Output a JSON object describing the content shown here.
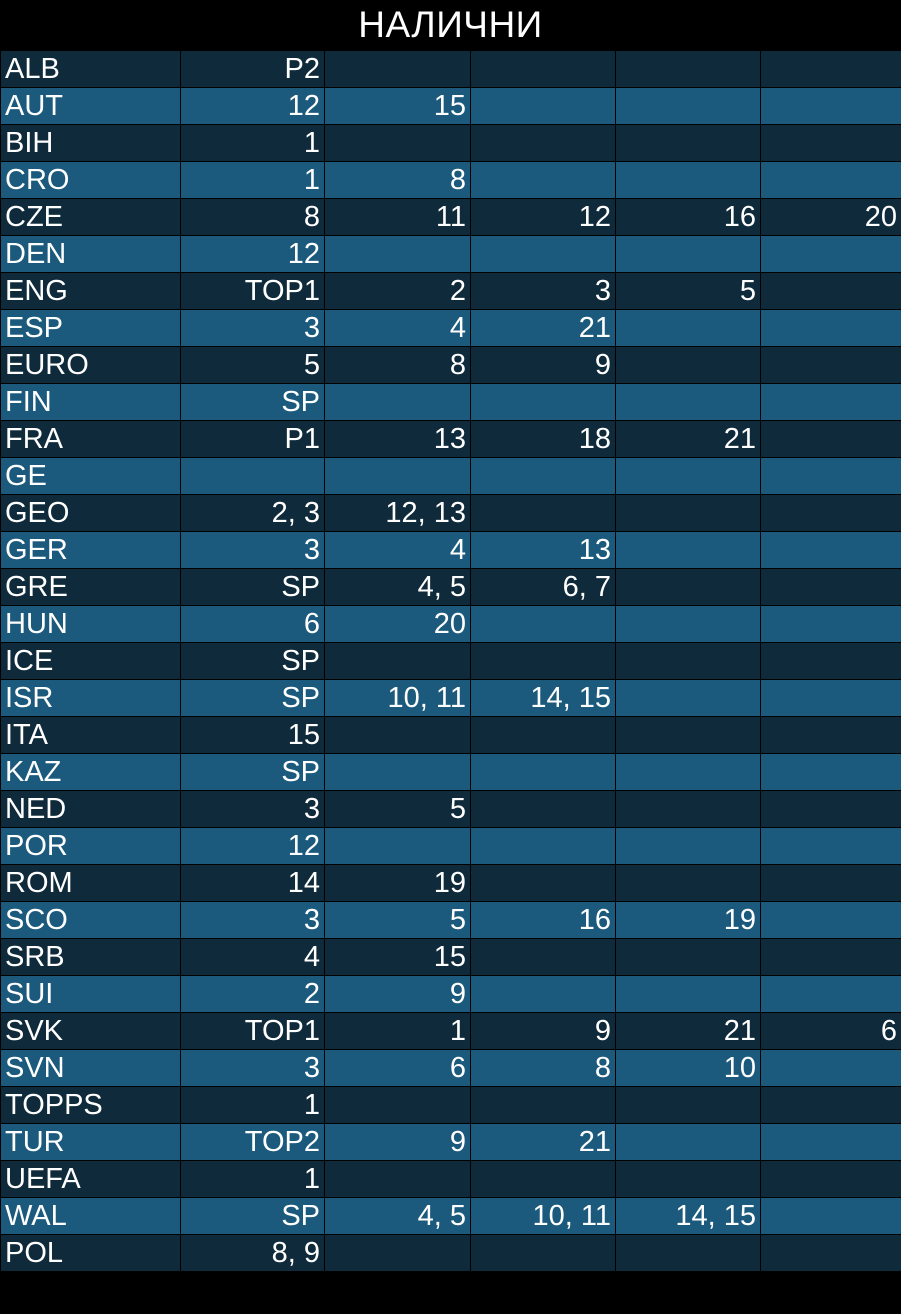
{
  "title": "НАЛИЧНИ",
  "colors": {
    "background": "#000000",
    "row_dark": "#0f2a3a",
    "row_light": "#1b5a7d",
    "text": "#ffffff"
  },
  "rows": [
    {
      "code": "ALB",
      "values": [
        "P2",
        "",
        "",
        "",
        ""
      ]
    },
    {
      "code": "AUT",
      "values": [
        "12",
        "15",
        "",
        "",
        ""
      ]
    },
    {
      "code": "BIH",
      "values": [
        "1",
        "",
        "",
        "",
        ""
      ]
    },
    {
      "code": "CRO",
      "values": [
        "1",
        "8",
        "",
        "",
        ""
      ]
    },
    {
      "code": "CZE",
      "values": [
        "8",
        "11",
        "12",
        "16",
        "20"
      ]
    },
    {
      "code": "DEN",
      "values": [
        "12",
        "",
        "",
        "",
        ""
      ]
    },
    {
      "code": "ENG",
      "values": [
        "TOP1",
        "2",
        "3",
        "5",
        ""
      ]
    },
    {
      "code": "ESP",
      "values": [
        "3",
        "4",
        "21",
        "",
        ""
      ]
    },
    {
      "code": "EURO",
      "values": [
        "5",
        "8",
        "9",
        "",
        ""
      ]
    },
    {
      "code": "FIN",
      "values": [
        "SP",
        "",
        "",
        "",
        ""
      ]
    },
    {
      "code": "FRA",
      "values": [
        "P1",
        "13",
        "18",
        "21",
        ""
      ]
    },
    {
      "code": "GE",
      "values": [
        "",
        "",
        "",
        "",
        ""
      ]
    },
    {
      "code": "GEO",
      "values": [
        "2, 3",
        "12, 13",
        "",
        "",
        ""
      ]
    },
    {
      "code": "GER",
      "values": [
        "3",
        "4",
        "13",
        "",
        ""
      ]
    },
    {
      "code": "GRE",
      "values": [
        "SP",
        "4, 5",
        "6, 7",
        "",
        ""
      ]
    },
    {
      "code": "HUN",
      "values": [
        "6",
        "20",
        "",
        "",
        ""
      ]
    },
    {
      "code": "ICE",
      "values": [
        "SP",
        "",
        "",
        "",
        ""
      ]
    },
    {
      "code": "ISR",
      "values": [
        "SP",
        "10, 11",
        "14, 15",
        "",
        ""
      ]
    },
    {
      "code": "ITA",
      "values": [
        "15",
        "",
        "",
        "",
        ""
      ]
    },
    {
      "code": "KAZ",
      "values": [
        "SP",
        "",
        "",
        "",
        ""
      ]
    },
    {
      "code": "NED",
      "values": [
        "3",
        "5",
        "",
        "",
        ""
      ]
    },
    {
      "code": "POR",
      "values": [
        "12",
        "",
        "",
        "",
        ""
      ]
    },
    {
      "code": "ROM",
      "values": [
        "14",
        "19",
        "",
        "",
        ""
      ]
    },
    {
      "code": "SCO",
      "values": [
        "3",
        "5",
        "16",
        "19",
        ""
      ]
    },
    {
      "code": "SRB",
      "values": [
        "4",
        "15",
        "",
        "",
        ""
      ]
    },
    {
      "code": "SUI",
      "values": [
        "2",
        "9",
        "",
        "",
        ""
      ]
    },
    {
      "code": "SVK",
      "values": [
        "TOP1",
        "1",
        "9",
        "21",
        "6"
      ]
    },
    {
      "code": "SVN",
      "values": [
        "3",
        "6",
        "8",
        "10",
        ""
      ]
    },
    {
      "code": "TOPPS",
      "values": [
        "1",
        "",
        "",
        "",
        ""
      ]
    },
    {
      "code": "TUR",
      "values": [
        "TOP2",
        "9",
        "21",
        "",
        ""
      ]
    },
    {
      "code": "UEFA",
      "values": [
        "1",
        "",
        "",
        "",
        ""
      ]
    },
    {
      "code": "WAL",
      "values": [
        "SP",
        "4, 5",
        "10, 11",
        "14, 15",
        ""
      ]
    },
    {
      "code": "POL",
      "values": [
        "8, 9",
        "",
        "",
        "",
        ""
      ]
    }
  ]
}
